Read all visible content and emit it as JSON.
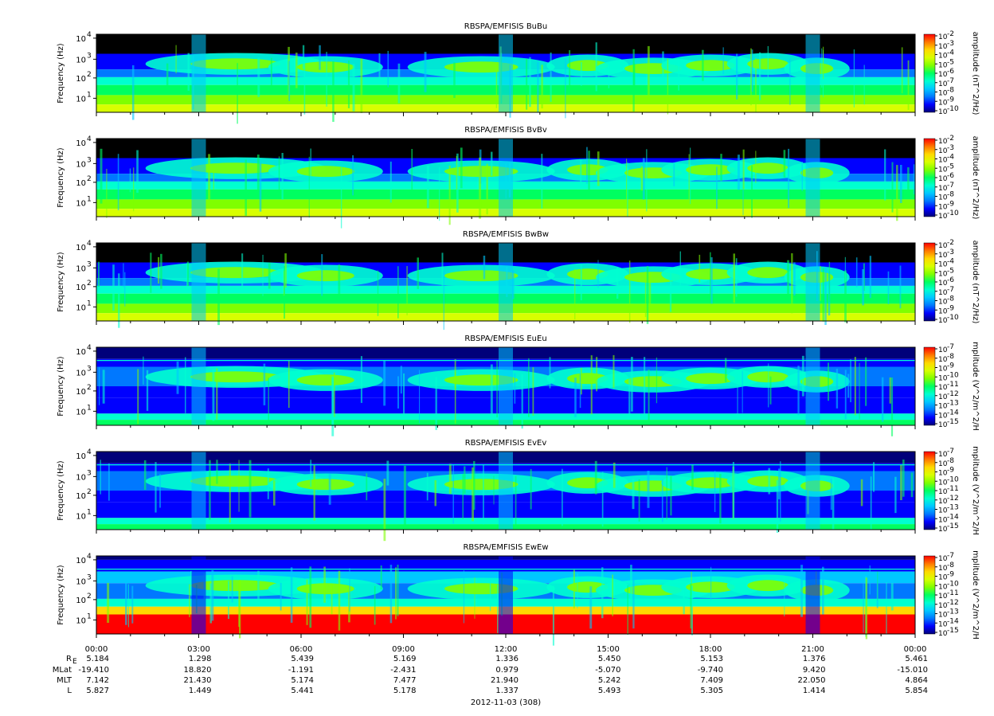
{
  "colors": {
    "spectrum": [
      "#000000",
      "#00007a",
      "#0000ff",
      "#0078ff",
      "#00c8ff",
      "#00ffd0",
      "#00ff60",
      "#7fff00",
      "#d8ff00",
      "#ffd800",
      "#ff7800",
      "#ff0000"
    ],
    "bar": [
      "#00007a",
      "#0000ff",
      "#0078ff",
      "#00c8ff",
      "#00ffd0",
      "#00ff60",
      "#7fff00",
      "#d8ff00",
      "#ffd800",
      "#ff7800",
      "#ff0000"
    ]
  },
  "chart_data": [
    {
      "type": "heatmap",
      "title": "RBSPA/EMFISIS  BuBu",
      "ylabel": "Frequency (Hz)",
      "colorbar_label": "amplitude (nT^2/Hz)",
      "colorbar_ticks": [
        "-2",
        "-3",
        "-4",
        "-5",
        "-6",
        "-7",
        "-8",
        "-9",
        "-10"
      ],
      "yticks": [
        "4",
        "3",
        "2",
        "1"
      ]
    },
    {
      "type": "heatmap",
      "title": "RBSPA/EMFISIS  BvBv",
      "ylabel": "Frequency (Hz)",
      "colorbar_label": "amplitude (nT^2/Hz)",
      "colorbar_ticks": [
        "-2",
        "-3",
        "-4",
        "-5",
        "-6",
        "-7",
        "-8",
        "-9",
        "-10"
      ],
      "yticks": [
        "4",
        "3",
        "2",
        "1"
      ]
    },
    {
      "type": "heatmap",
      "title": "RBSPA/EMFISIS  BwBw",
      "ylabel": "Frequency (Hz)",
      "colorbar_label": "amplitude (nT^2/Hz)",
      "colorbar_ticks": [
        "-2",
        "-3",
        "-4",
        "-5",
        "-6",
        "-7",
        "-8",
        "-9",
        "-10"
      ],
      "yticks": [
        "4",
        "3",
        "2",
        "1"
      ]
    },
    {
      "type": "heatmap",
      "title": "RBSPA/EMFISIS  EuEu",
      "ylabel": "Frequency (Hz)",
      "colorbar_label": "mplitude (V^2/m^2/H",
      "colorbar_ticks": [
        "-7",
        "-8",
        "-9",
        "-10",
        "-11",
        "-12",
        "-13",
        "-14",
        "-15"
      ],
      "yticks": [
        "4",
        "3",
        "2",
        "1"
      ]
    },
    {
      "type": "heatmap",
      "title": "RBSPA/EMFISIS  EvEv",
      "ylabel": "Frequency (Hz)",
      "colorbar_label": "mplitude (V^2/m^2/H",
      "colorbar_ticks": [
        "-7",
        "-8",
        "-9",
        "-10",
        "-11",
        "-12",
        "-13",
        "-14",
        "-15"
      ],
      "yticks": [
        "4",
        "3",
        "2",
        "1"
      ]
    },
    {
      "type": "heatmap",
      "title": "RBSPA/EMFISIS  EwEw",
      "ylabel": "Frequency (Hz)",
      "colorbar_label": "mplitude (V^2/m^2/H",
      "colorbar_ticks": [
        "-7",
        "-8",
        "-9",
        "-10",
        "-11",
        "-12",
        "-13",
        "-14",
        "-15"
      ],
      "yticks": [
        "4",
        "3",
        "2",
        "1"
      ]
    }
  ],
  "time_axis": {
    "labels": [
      "00:00",
      "03:00",
      "06:00",
      "09:00",
      "12:00",
      "15:00",
      "18:00",
      "21:00",
      "00:00"
    ],
    "rows": [
      {
        "name": "R",
        "sub": "E",
        "values": [
          "5.184",
          "1.298",
          "5.439",
          "5.169",
          "1.336",
          "5.450",
          "5.153",
          "1.376",
          "5.461"
        ]
      },
      {
        "name": "MLat",
        "values": [
          "-19.410",
          "18.820",
          "-1.191",
          "-2.431",
          "0.979",
          "-5.070",
          "-9.740",
          "9.420",
          "-15.010"
        ]
      },
      {
        "name": "MLT",
        "values": [
          "7.142",
          "21.430",
          "5.174",
          "7.477",
          "21.940",
          "5.242",
          "7.409",
          "22.050",
          "4.864"
        ]
      },
      {
        "name": "L",
        "values": [
          "5.827",
          "1.449",
          "5.441",
          "5.178",
          "1.337",
          "5.493",
          "5.305",
          "1.414",
          "5.854"
        ]
      }
    ],
    "date": "2012-11-03 (308)"
  }
}
